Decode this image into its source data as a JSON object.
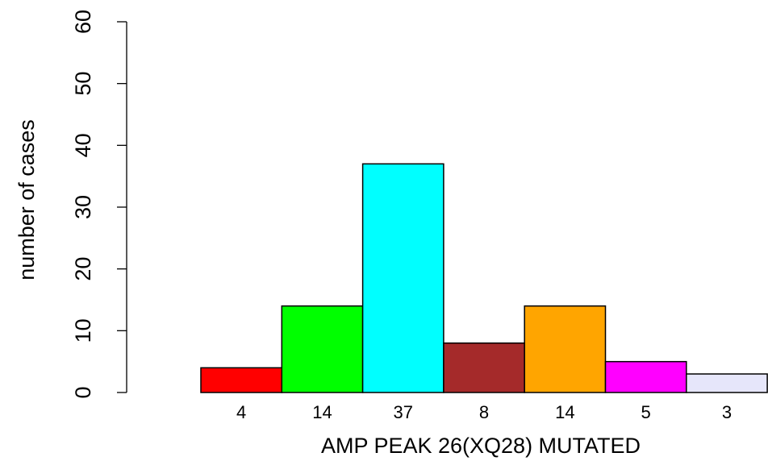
{
  "chart_data": {
    "type": "bar",
    "xlabel": "AMP PEAK 26(XQ28) MUTATED",
    "ylabel": "number of cases",
    "ylim": [
      0,
      60
    ],
    "yticks": [
      0,
      10,
      20,
      30,
      40,
      50,
      60
    ],
    "grid": false,
    "categories": [
      "4",
      "14",
      "37",
      "8",
      "14",
      "5",
      "3"
    ],
    "values": [
      4,
      14,
      37,
      8,
      14,
      5,
      3
    ],
    "colors": [
      "#ff0000",
      "#00ff00",
      "#00ffff",
      "#a52a2a",
      "#ffa500",
      "#ff00ff",
      "#e6e6fa"
    ]
  }
}
